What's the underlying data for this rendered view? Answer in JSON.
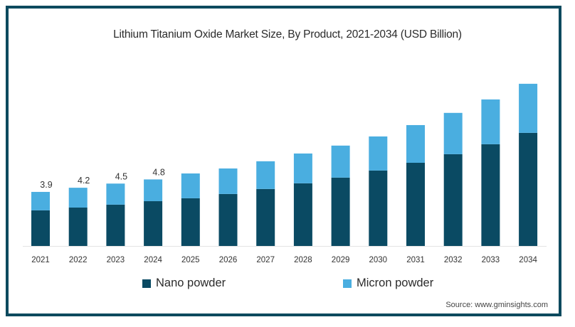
{
  "chart_data": {
    "type": "bar",
    "stacked": true,
    "title": "Lithium Titanium Oxide Market Size, By Product, 2021-2034 (USD Billion)",
    "xlabel": "",
    "ylabel": "",
    "ylim": [
      0,
      12
    ],
    "grid": false,
    "categories": [
      "2021",
      "2022",
      "2023",
      "2024",
      "2025",
      "2026",
      "2027",
      "2028",
      "2029",
      "2030",
      "2031",
      "2032",
      "2033",
      "2034"
    ],
    "series": [
      {
        "name": "Nano powder",
        "color": "#0a4a63",
        "values": [
          2.57,
          2.77,
          2.98,
          3.23,
          3.44,
          3.75,
          4.11,
          4.52,
          4.93,
          5.44,
          6.0,
          6.62,
          7.34,
          8.16
        ]
      },
      {
        "name": "Micron powder",
        "color": "#4aaee0",
        "values": [
          1.33,
          1.43,
          1.52,
          1.57,
          1.79,
          1.84,
          2.0,
          2.15,
          2.31,
          2.46,
          2.72,
          2.98,
          3.23,
          3.54
        ]
      }
    ],
    "data_labels": [
      {
        "category": "2021",
        "text": "3.9"
      },
      {
        "category": "2022",
        "text": "4.2"
      },
      {
        "category": "2023",
        "text": "4.5"
      },
      {
        "category": "2024",
        "text": "4.8"
      }
    ],
    "legend": {
      "position": "bottom",
      "entries": [
        "Nano powder",
        "Micron powder"
      ]
    },
    "source": "Source: www.gminsights.com"
  }
}
